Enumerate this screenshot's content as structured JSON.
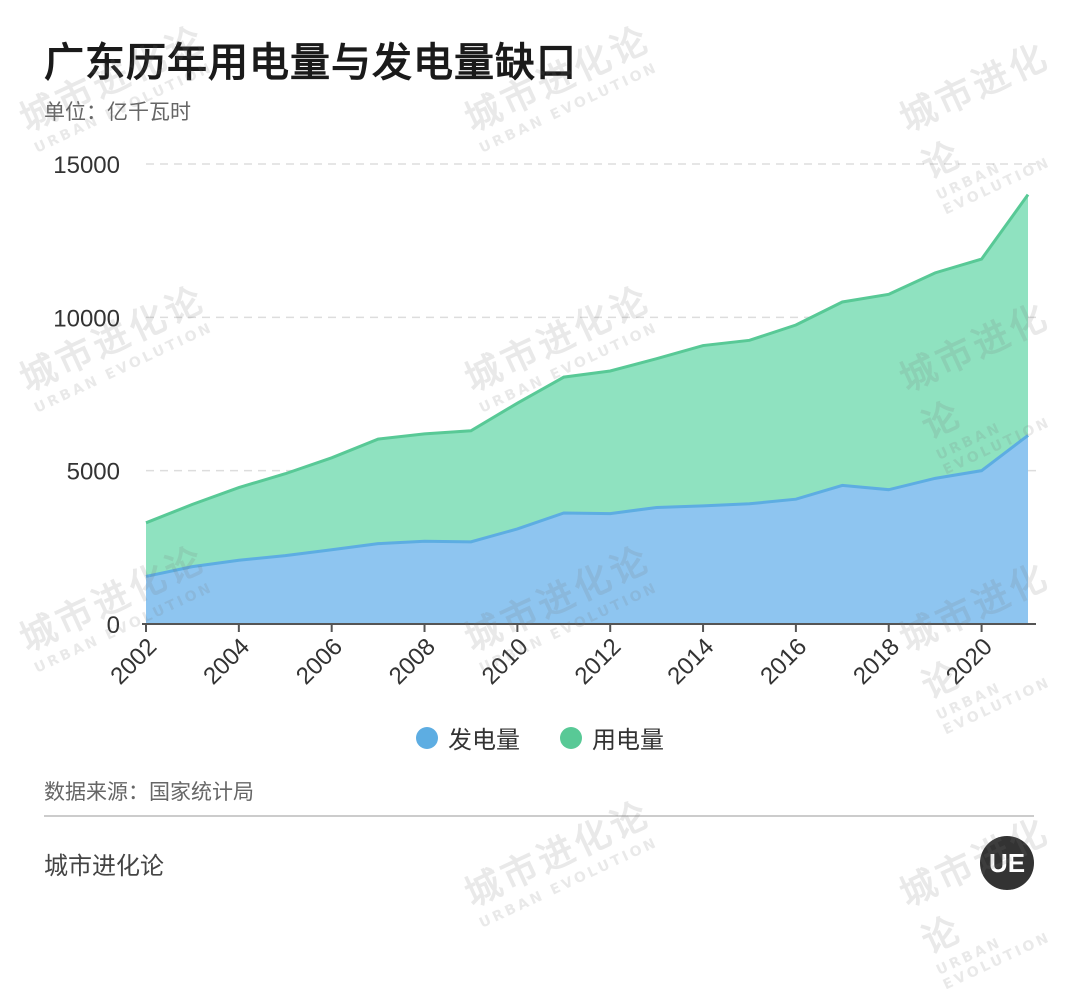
{
  "header": {
    "title": "广东历年用电量与发电量缺口",
    "subtitle": "单位：亿千瓦时"
  },
  "footer": {
    "source": "数据来源：国家统计局",
    "brand": "城市进化论",
    "logo_text": "UE"
  },
  "watermark": {
    "main": "城市进化论",
    "sub": "URBAN EVOLUTION"
  },
  "chart_data": {
    "type": "area",
    "x": [
      2002,
      2003,
      2004,
      2005,
      2006,
      2007,
      2008,
      2009,
      2010,
      2011,
      2012,
      2013,
      2014,
      2015,
      2016,
      2017,
      2018,
      2019,
      2020,
      2021
    ],
    "x_tick_labels": [
      "2002",
      "2004",
      "2006",
      "2008",
      "2010",
      "2012",
      "2014",
      "2016",
      "2018",
      "2020"
    ],
    "y_tick_labels": [
      "0",
      "5000",
      "10000",
      "15000"
    ],
    "ylim": [
      0,
      15000
    ],
    "grid": true,
    "legend": "bottom-center",
    "series": [
      {
        "name": "发电量",
        "color": "#5dade2",
        "fill": "#8ec5f0",
        "values": [
          1550,
          1870,
          2080,
          2230,
          2420,
          2620,
          2700,
          2680,
          3100,
          3620,
          3600,
          3800,
          3850,
          3920,
          4070,
          4520,
          4380,
          4750,
          5000,
          6150
        ]
      },
      {
        "name": "用电量",
        "color": "#58c996",
        "fill": "#8fe2c0",
        "values": [
          3300,
          3900,
          4450,
          4900,
          5420,
          6030,
          6200,
          6300,
          7200,
          8050,
          8250,
          8650,
          9080,
          9250,
          9750,
          10500,
          10750,
          11450,
          11900,
          14000
        ]
      }
    ]
  }
}
